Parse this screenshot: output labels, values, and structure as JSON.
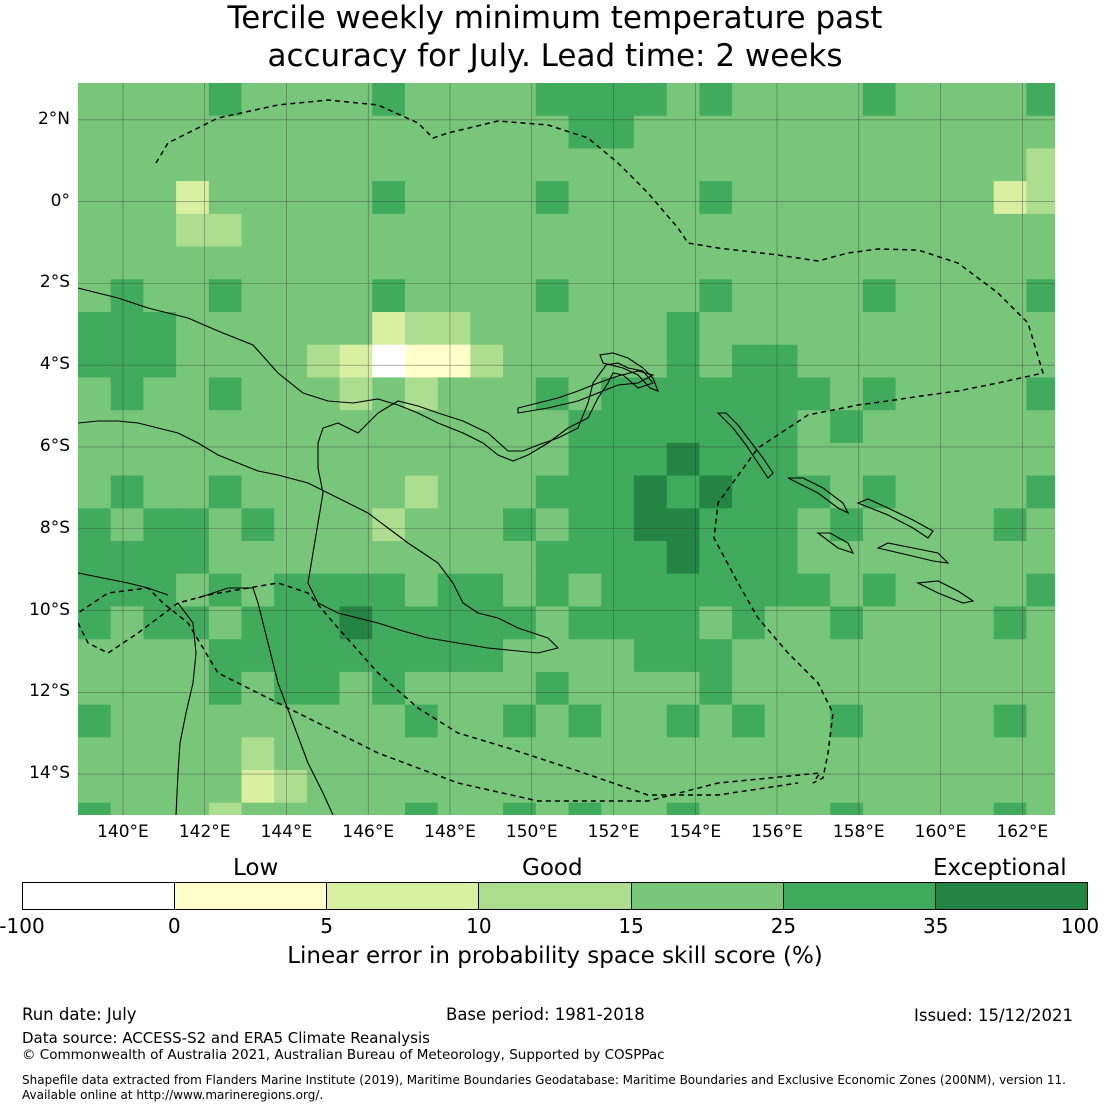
{
  "title": {
    "line1": "Tercile weekly minimum temperature past",
    "line2": "accuracy for July. Lead time: 2 weeks"
  },
  "map": {
    "lat_labels": [
      "2°N",
      "0°",
      "2°S",
      "4°S",
      "6°S",
      "8°S",
      "10°S",
      "12°S",
      "14°S"
    ],
    "lon_labels": [
      "140°E",
      "142°E",
      "144°E",
      "146°E",
      "148°E",
      "150°E",
      "152°E",
      "154°E",
      "156°E",
      "158°E",
      "160°E",
      "162°E"
    ],
    "lon_range": [
      138.9,
      162.8
    ],
    "lat_range": [
      -15.0,
      2.9
    ],
    "colors": {
      "land_outline": "#000000",
      "eez_boundary": "#000000",
      "gridlines": "#333333"
    }
  },
  "legend": {
    "categories": [
      "Low",
      "Good",
      "Exceptional"
    ],
    "bins": [
      {
        "from": -100,
        "to": 0,
        "color": "#ffffff"
      },
      {
        "from": 0,
        "to": 5,
        "color": "#ffffcc"
      },
      {
        "from": 5,
        "to": 10,
        "color": "#d9f0a3"
      },
      {
        "from": 10,
        "to": 15,
        "color": "#addd8e"
      },
      {
        "from": 15,
        "to": 25,
        "color": "#78c679"
      },
      {
        "from": 25,
        "to": 35,
        "color": "#41ab5d"
      },
      {
        "from": 35,
        "to": 100,
        "color": "#238443"
      }
    ],
    "tick_labels": [
      "-100",
      "0",
      "5",
      "10",
      "15",
      "25",
      "35",
      "100"
    ],
    "axis_title": "Linear error in probability space skill score (%)"
  },
  "footer": {
    "run_date": "Run date: July",
    "base_period": "Base period: 1981-2018",
    "issued": "Issued: 15/12/2021",
    "data_source": "Data source: ACCESS-S2 and ERA5 Climate Reanalysis",
    "copyright": "© Commonwealth of Australia 2021, Australian Bureau of Meteorology, Supported by COSPPac",
    "shapefile_line1": "Shapefile data extracted from Flanders Marine Institute (2019), Maritime Boundaries Geodatabase: Maritime Boundaries and Exclusive Economic Zones (200NM), version 11.",
    "shapefile_line2": "Available online at http://www.marineregions.org/."
  }
}
